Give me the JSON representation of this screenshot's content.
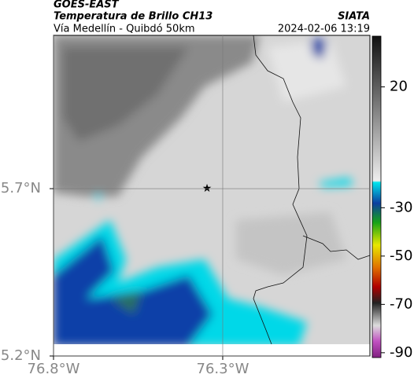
{
  "header": {
    "title": "GOES-EAST",
    "subtitle": "Temperatura de Brillo CH13",
    "source": "SIATA",
    "route": "Vía Medellín - Quibdó 50km",
    "timestamp": "2024-02-06 13:19"
  },
  "map": {
    "xlim": [
      -76.8,
      -75.865
    ],
    "ylim": [
      5.2,
      6.158
    ],
    "xticks": [
      {
        "value": -76.8,
        "label": "76.8°W"
      },
      {
        "value": -76.3,
        "label": "76.3°W"
      }
    ],
    "yticks": [
      {
        "value": 5.7,
        "label": "5.7°N"
      },
      {
        "value": 5.2,
        "label": "5.2°N"
      }
    ],
    "grid": true
  },
  "colorbar": {
    "lim": [
      -92,
      41
    ],
    "ticks": [
      20,
      -30,
      -50,
      -70,
      -90
    ]
  }
}
